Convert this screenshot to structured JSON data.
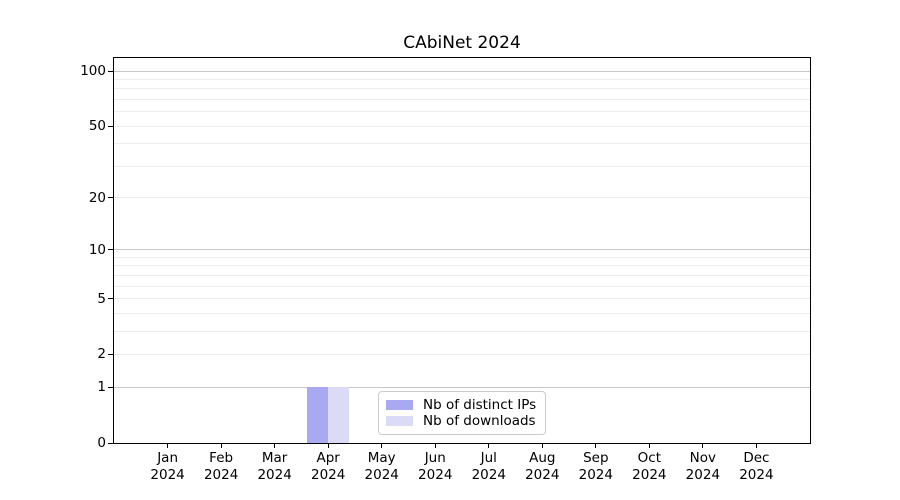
{
  "chart_data": {
    "type": "bar",
    "title": "CAbiNet 2024",
    "categories": [
      [
        "Jan",
        "2024"
      ],
      [
        "Feb",
        "2024"
      ],
      [
        "Mar",
        "2024"
      ],
      [
        "Apr",
        "2024"
      ],
      [
        "May",
        "2024"
      ],
      [
        "Jun",
        "2024"
      ],
      [
        "Jul",
        "2024"
      ],
      [
        "Aug",
        "2024"
      ],
      [
        "Sep",
        "2024"
      ],
      [
        "Oct",
        "2024"
      ],
      [
        "Nov",
        "2024"
      ],
      [
        "Dec",
        "2024"
      ]
    ],
    "series": [
      {
        "name": "Nb of distinct IPs",
        "color": "#a9a9f1",
        "values": [
          0,
          0,
          0,
          1,
          0,
          0,
          0,
          0,
          0,
          0,
          0,
          0
        ]
      },
      {
        "name": "Nb of downloads",
        "color": "#dbdbf8",
        "values": [
          0,
          0,
          0,
          1,
          0,
          0,
          0,
          0,
          0,
          0,
          0,
          0
        ]
      }
    ],
    "xlabel": "",
    "ylabel": "",
    "yscale": "log1p",
    "ylim": [
      0,
      118
    ],
    "yticks": [
      0,
      1,
      2,
      5,
      10,
      20,
      50,
      100
    ],
    "grid": {
      "on": true,
      "major_values": [
        1,
        10,
        100
      ],
      "minor_values": [
        2,
        3,
        4,
        5,
        6,
        7,
        8,
        9,
        20,
        30,
        40,
        50,
        60,
        70,
        80,
        90
      ],
      "major_color": "#c8c8c8",
      "minor_color": "#ececec"
    },
    "legend": {
      "position": "lower center",
      "border_color": "#cccccc",
      "background": "#ffffff"
    },
    "axis_color": "#000000",
    "background": "#ffffff"
  }
}
